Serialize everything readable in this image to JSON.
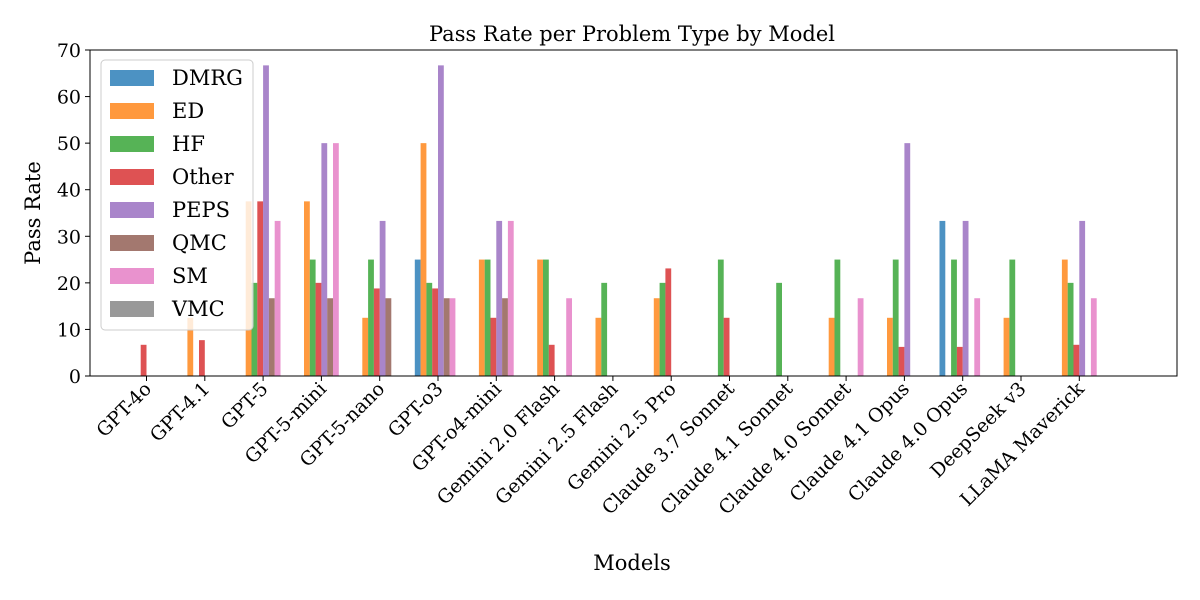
{
  "chart_data": {
    "type": "bar",
    "title": "Pass Rate per Problem Type by Model",
    "xlabel": "Models",
    "ylabel": "Pass Rate",
    "ylim": [
      0,
      70
    ],
    "yticks": [
      0,
      10,
      20,
      30,
      40,
      50,
      60,
      70
    ],
    "grid": false,
    "legend_position": "top-left",
    "categories": [
      "GPT-4o",
      "GPT-4.1",
      "GPT-5",
      "GPT-5-mini",
      "GPT-5-nano",
      "GPT-o3",
      "GPT-o4-mini",
      "Gemini 2.0 Flash",
      "Gemini 2.5 Flash",
      "Gemini 2.5 Pro",
      "Claude 3.7 Sonnet",
      "Claude 4.1 Sonnet",
      "Claude 4.0 Sonnet",
      "Claude 4.1 Opus",
      "Claude 4.0 Opus",
      "DeepSeek v3",
      "LLaMA Maverick"
    ],
    "series": [
      {
        "name": "DMRG",
        "color": "#1f77b4",
        "values": [
          0,
          0,
          0,
          0,
          0,
          25,
          0,
          0,
          0,
          0,
          0,
          0,
          0,
          0,
          33.3,
          0,
          0
        ]
      },
      {
        "name": "ED",
        "color": "#ff7f0e",
        "values": [
          0,
          12.5,
          37.5,
          37.5,
          12.5,
          50,
          25,
          25,
          12.5,
          16.7,
          0,
          0,
          12.5,
          12.5,
          0,
          12.5,
          25
        ]
      },
      {
        "name": "HF",
        "color": "#2ca02c",
        "values": [
          0,
          0,
          20,
          25,
          25,
          20,
          25,
          25,
          20,
          20,
          25,
          20,
          25,
          25,
          25,
          25,
          20
        ]
      },
      {
        "name": "Other",
        "color": "#d62728",
        "values": [
          6.7,
          7.7,
          37.5,
          20,
          18.8,
          18.8,
          12.5,
          6.7,
          0,
          23.1,
          12.5,
          0,
          0,
          6.25,
          6.25,
          0,
          6.7
        ]
      },
      {
        "name": "PEPS",
        "color": "#9467bd",
        "values": [
          0,
          0,
          66.7,
          50,
          33.3,
          66.7,
          33.3,
          0,
          0,
          0,
          0,
          0,
          0,
          50,
          33.3,
          0,
          33.3
        ]
      },
      {
        "name": "QMC",
        "color": "#8c564b",
        "values": [
          0,
          0,
          16.7,
          16.7,
          16.7,
          16.7,
          16.7,
          0,
          0,
          0,
          0,
          0,
          0,
          0,
          0,
          0,
          0
        ]
      },
      {
        "name": "SM",
        "color": "#e377c2",
        "values": [
          0,
          0,
          33.3,
          50,
          0,
          16.7,
          33.3,
          16.7,
          0,
          0,
          0,
          0,
          16.7,
          0,
          16.7,
          0,
          16.7
        ]
      },
      {
        "name": "VMC",
        "color": "#7f7f7f",
        "values": [
          0,
          0,
          0,
          0,
          0,
          0,
          0,
          0,
          0,
          0,
          0,
          0,
          0,
          0,
          0,
          0,
          0
        ]
      }
    ]
  }
}
